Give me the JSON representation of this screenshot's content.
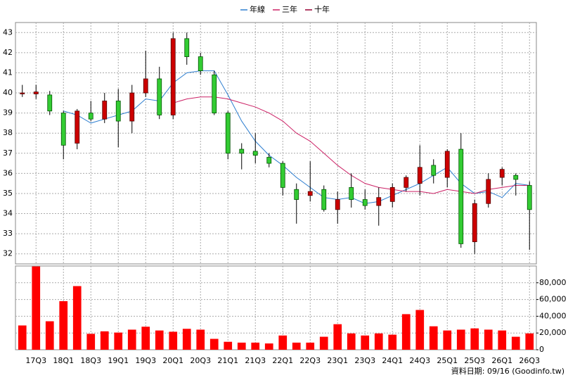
{
  "chart_data": {
    "type": "candlestick",
    "categories": [
      null,
      "17Q3",
      null,
      "18Q1",
      null,
      "18Q3",
      null,
      "19Q1",
      null,
      "19Q3",
      null,
      "20Q1",
      null,
      "20Q3",
      null,
      "21Q1",
      null,
      "21Q3",
      null,
      "22Q1",
      null,
      "22Q3",
      null,
      "23Q1",
      null,
      "23Q3",
      null,
      "24Q1",
      null,
      "24Q3",
      null,
      "25Q1",
      null,
      "25Q3",
      null,
      "26Q1",
      null,
      "26Q3"
    ],
    "open": [
      39.95,
      39.95,
      39.9,
      39.0,
      37.5,
      39.0,
      38.7,
      39.6,
      38.6,
      40.0,
      40.7,
      38.9,
      42.7,
      41.8,
      40.9,
      39.0,
      37.2,
      37.1,
      36.8,
      36.5,
      35.2,
      34.9,
      35.2,
      34.2,
      35.3,
      34.7,
      34.4,
      34.6,
      35.3,
      35.5,
      36.4,
      35.8,
      37.2,
      32.6,
      34.5,
      35.8,
      35.9,
      35.4
    ],
    "high": [
      40.4,
      40.4,
      40.1,
      39.1,
      39.2,
      39.6,
      40.0,
      40.2,
      40.4,
      42.1,
      41.3,
      43.0,
      43.0,
      42.0,
      41.1,
      39.1,
      37.5,
      38.0,
      37.0,
      36.6,
      35.5,
      36.6,
      35.4,
      35.1,
      36.0,
      35.2,
      35.3,
      35.5,
      35.9,
      37.4,
      36.7,
      37.2,
      38.0,
      34.7,
      36.0,
      36.3,
      36.0,
      35.6
    ],
    "low": [
      39.8,
      39.7,
      38.9,
      36.7,
      37.2,
      38.6,
      38.5,
      37.3,
      38.0,
      39.8,
      38.7,
      38.7,
      41.4,
      40.9,
      38.9,
      36.7,
      36.2,
      36.5,
      36.3,
      34.9,
      33.5,
      34.6,
      34.1,
      33.5,
      34.3,
      34.2,
      33.4,
      34.3,
      35.1,
      34.9,
      35.5,
      35.3,
      32.3,
      32.0,
      34.3,
      35.4,
      34.9,
      32.2
    ],
    "close": [
      40.0,
      40.05,
      39.1,
      37.4,
      39.1,
      38.7,
      39.6,
      38.6,
      40.0,
      40.7,
      38.9,
      42.7,
      41.8,
      41.1,
      39.0,
      37.0,
      37.0,
      36.9,
      36.5,
      35.3,
      34.7,
      35.1,
      34.2,
      34.7,
      34.7,
      34.4,
      34.8,
      35.3,
      35.8,
      36.3,
      35.9,
      37.1,
      32.5,
      34.5,
      35.7,
      36.2,
      35.7,
      34.2
    ],
    "up_color": "#cc0000",
    "down_color": "#33cc33",
    "series": [
      {
        "name": "年線",
        "color": "#2f7fd0",
        "values": [
          null,
          null,
          null,
          39.1,
          38.9,
          38.5,
          38.7,
          38.9,
          39.1,
          39.7,
          39.6,
          40.5,
          41.0,
          41.1,
          41.1,
          39.9,
          38.6,
          37.6,
          36.9,
          36.4,
          35.8,
          35.3,
          34.8,
          34.7,
          34.8,
          34.5,
          34.6,
          34.9,
          35.2,
          35.5,
          35.9,
          36.3,
          35.5,
          35.0,
          35.1,
          34.8,
          35.5,
          35.4
        ]
      },
      {
        "name": "三年",
        "color": "#cc2266",
        "values": [
          null,
          null,
          null,
          null,
          null,
          null,
          null,
          null,
          null,
          null,
          null,
          39.5,
          39.7,
          39.8,
          39.8,
          39.7,
          39.5,
          39.3,
          39.0,
          38.6,
          38.0,
          37.6,
          37.0,
          36.4,
          35.9,
          35.5,
          35.3,
          35.2,
          35.1,
          35.1,
          35.0,
          35.2,
          35.1,
          35.0,
          35.2,
          35.3,
          35.4,
          35.4
        ]
      },
      {
        "name": "十年",
        "color": "#990033",
        "values": [
          null,
          null,
          null,
          null,
          null,
          null,
          null,
          null,
          null,
          null,
          null,
          null,
          null,
          null,
          null,
          null,
          null,
          null,
          null,
          null,
          null,
          null,
          null,
          null,
          null,
          null,
          null,
          null,
          null,
          null,
          null,
          null,
          null,
          null,
          null,
          null,
          null,
          null
        ]
      }
    ],
    "ylim": [
      31.5,
      43.5
    ],
    "yticks": [
      32,
      33,
      34,
      35,
      36,
      37,
      38,
      39,
      40,
      41,
      42,
      43
    ],
    "volume": {
      "color": "#ff0000",
      "values": [
        29000,
        99500,
        34000,
        58000,
        76000,
        19000,
        22000,
        20500,
        24000,
        27500,
        23000,
        21500,
        25000,
        24000,
        13000,
        9500,
        8500,
        8500,
        7500,
        17000,
        8500,
        8500,
        15500,
        30500,
        19500,
        17000,
        19500,
        18000,
        42500,
        47500,
        28000,
        23000,
        24000,
        25500,
        24000,
        23000,
        15500,
        19500
      ],
      "ylim": [
        0,
        100000
      ],
      "yticks": [
        0,
        {
          "value": 20000,
          "label": "20,000"
        },
        {
          "value": 40000,
          "label": "40,000"
        },
        {
          "value": 60000,
          "label": "60,000"
        },
        {
          "value": 80000,
          "label": "80,000"
        }
      ]
    },
    "grid": true,
    "source": "資料日期: 09/16 (Goodinfo.tw)"
  }
}
